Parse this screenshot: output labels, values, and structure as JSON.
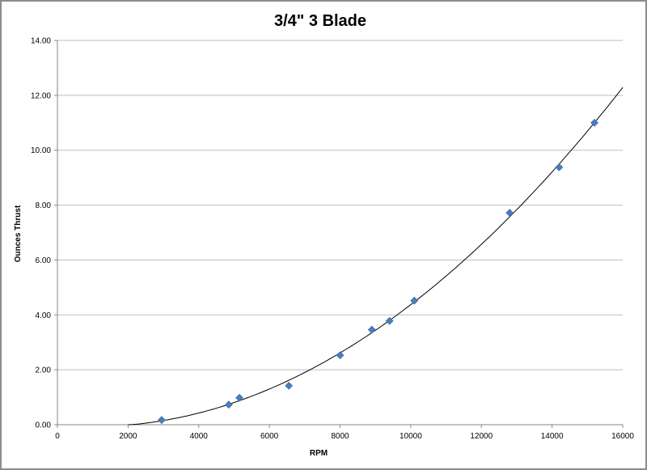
{
  "chart_data": {
    "type": "scatter",
    "title": "3/4\" 3 Blade",
    "xlabel": "RPM",
    "ylabel": "Ounces Thrust",
    "xlim": [
      0,
      16000
    ],
    "ylim": [
      0,
      14
    ],
    "x_ticks": [
      "0",
      "2000",
      "4000",
      "6000",
      "8000",
      "10000",
      "12000",
      "14000",
      "16000"
    ],
    "y_ticks": [
      "0.00",
      "2.00",
      "4.00",
      "6.00",
      "8.00",
      "10.00",
      "12.00",
      "14.00"
    ],
    "grid": "horizontal",
    "legend": "none",
    "marker": "diamond",
    "series": [
      {
        "x": [
          2950,
          4850,
          5150,
          6550,
          8000,
          8900,
          9400,
          10100,
          12800,
          14200,
          15200
        ],
        "y": [
          0.17,
          0.73,
          0.98,
          1.42,
          2.53,
          3.46,
          3.78,
          4.52,
          7.72,
          9.38,
          11.0
        ]
      }
    ],
    "trendline": {
      "type": "polynomial",
      "x_start": 2000,
      "x_end": 16000,
      "y_start": 0.0,
      "y_end": 12.25
    },
    "colors": {
      "marker": "#4a7ebb",
      "grid": "#bfbfbf",
      "trendline": "#000000",
      "axis": "#868686"
    }
  }
}
